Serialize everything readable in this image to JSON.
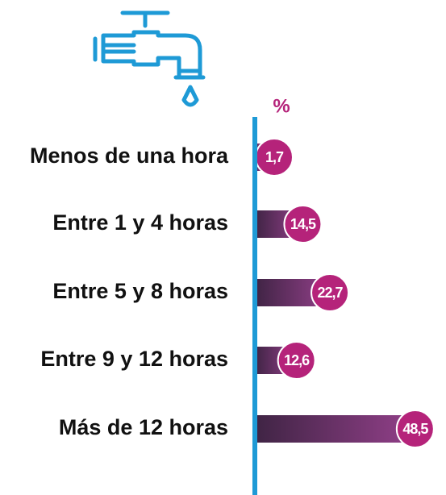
{
  "chart_data": {
    "type": "bar",
    "orientation": "horizontal",
    "unit_label": "%",
    "categories": [
      "Menos de una hora",
      "Entre 1 y 4 horas",
      "Entre 5 y 8 horas",
      "Entre 9 y 12 horas",
      "Más de 12 horas"
    ],
    "values": [
      1.7,
      14.5,
      22.7,
      12.6,
      48.5
    ],
    "value_labels": [
      "1,7",
      "14,5",
      "22,7",
      "12,6",
      "48,5"
    ],
    "xlim": [
      0,
      50
    ],
    "color": "#6b2f68",
    "label_color": "#b5237a",
    "axis_color": "#1e9ad6"
  }
}
